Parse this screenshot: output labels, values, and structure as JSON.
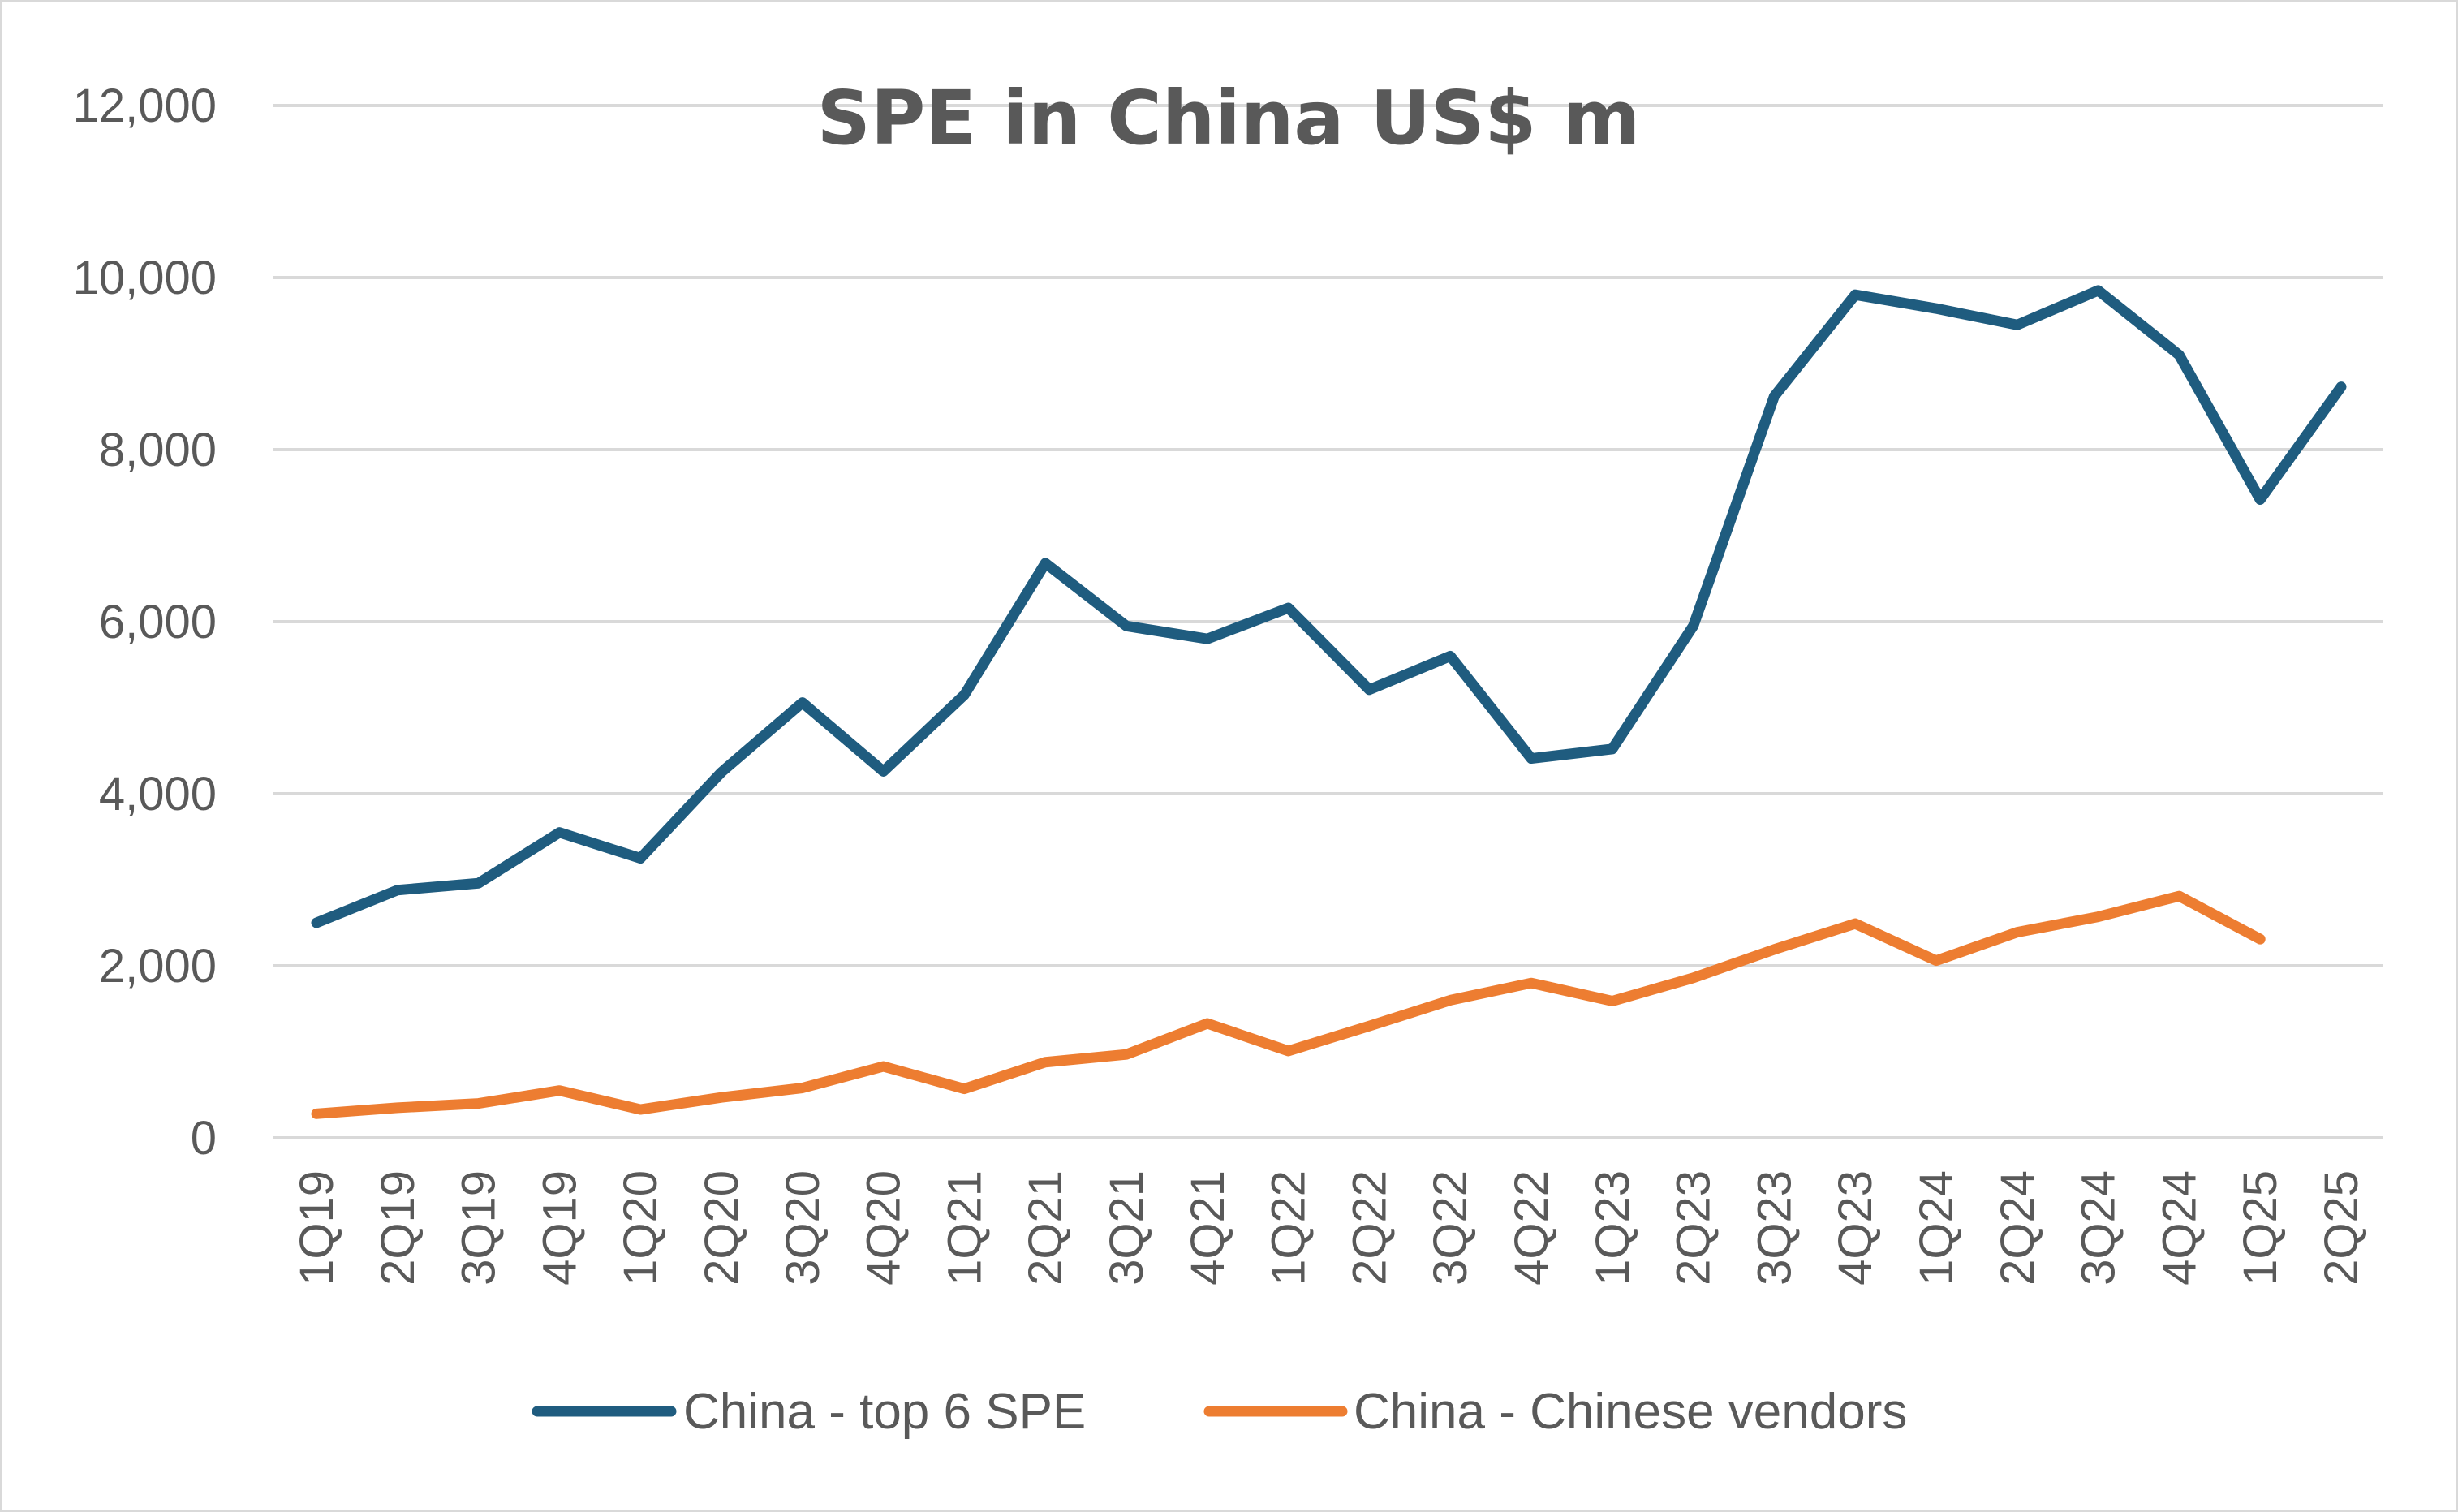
{
  "chart_data": {
    "type": "line",
    "title": "SPE in China US$ m",
    "xlabel": "",
    "ylabel": "",
    "ylim": [
      0,
      12000
    ],
    "yticks": [
      0,
      2000,
      4000,
      6000,
      8000,
      10000,
      12000
    ],
    "ytick_labels": [
      "0",
      "2,000",
      "4,000",
      "6,000",
      "8,000",
      "10,000",
      "12,000"
    ],
    "grid": true,
    "legend_position": "bottom",
    "categories": [
      "1Q19",
      "2Q19",
      "3Q19",
      "4Q19",
      "1Q20",
      "2Q20",
      "3Q20",
      "4Q20",
      "1Q21",
      "2Q21",
      "3Q21",
      "4Q21",
      "1Q22",
      "2Q22",
      "3Q22",
      "4Q22",
      "1Q23",
      "2Q23",
      "3Q23",
      "4Q23",
      "1Q24",
      "2Q24",
      "3Q24",
      "4Q24",
      "1Q25",
      "2Q25"
    ],
    "series": [
      {
        "name": "China - top 6 SPE",
        "color": "#1f5c7f",
        "values": [
          2500,
          2880,
          2960,
          3550,
          3250,
          4250,
          5060,
          4260,
          5150,
          6680,
          5950,
          5800,
          6160,
          5210,
          5600,
          4410,
          4520,
          5950,
          8620,
          9800,
          9640,
          9450,
          9850,
          9100,
          7420,
          8730
        ]
      },
      {
        "name": "China - Chinese vendors",
        "color": "#ed7d31",
        "values": [
          280,
          350,
          400,
          550,
          330,
          470,
          580,
          830,
          570,
          880,
          970,
          1330,
          1010,
          1300,
          1600,
          1800,
          1590,
          1860,
          2190,
          2490,
          2060,
          2390,
          2570,
          2810,
          2310,
          null
        ]
      }
    ]
  }
}
